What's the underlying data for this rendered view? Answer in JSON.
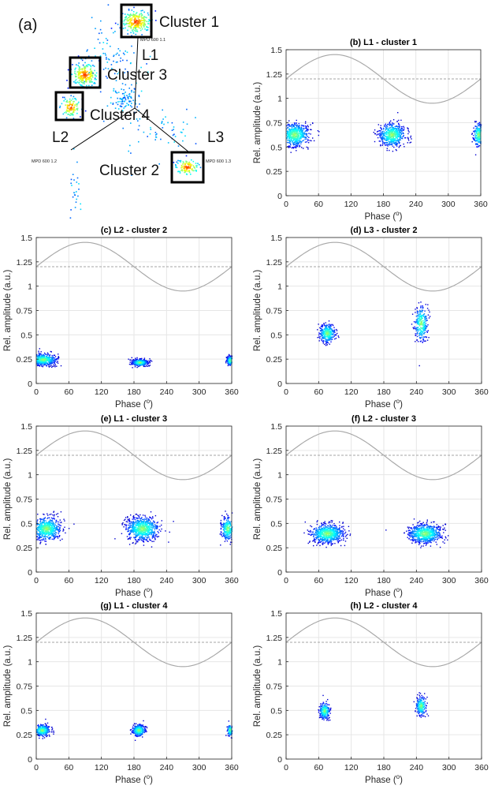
{
  "scatter_panel": {
    "label": "(a)",
    "clusters": [
      "Cluster 1",
      "Cluster 2",
      "Cluster 3",
      "Cluster 4"
    ],
    "lines": [
      "L1",
      "L2",
      "L3"
    ],
    "small_labels": [
      "MPD 600 1.1",
      "MPD 600 1.2",
      "MPD 600 1.3"
    ]
  },
  "chart_data": [
    {
      "type": "scatter",
      "title": "(b) L1 - cluster 1",
      "xlabel": "Phase (°)",
      "ylabel": "Rel. amplitude (a.u.)",
      "xlim": [
        0,
        360
      ],
      "ylim": [
        0,
        1.5
      ],
      "xticks": [
        "0",
        "60",
        "120",
        "180",
        "240",
        "300",
        "360"
      ],
      "yticks": [
        "0",
        "0.25",
        "0.5",
        "0.75",
        "1",
        "1.25",
        "1.5"
      ],
      "grid": true,
      "reference": {
        "sine_center": 1.2,
        "sine_amplitude": 0.25,
        "dashed_level": 1.2
      },
      "clusters": [
        {
          "x_center": 15,
          "x_spread": 22,
          "y_center": 0.63,
          "y_spread": 0.1
        },
        {
          "x_center": 195,
          "x_spread": 20,
          "y_center": 0.63,
          "y_spread": 0.1
        },
        {
          "x_center": 355,
          "x_spread": 8,
          "y_center": 0.63,
          "y_spread": 0.1
        }
      ]
    },
    {
      "type": "scatter",
      "title": "(c) L2 - cluster 2",
      "xlabel": "Phase (°)",
      "ylabel": "Rel. amplitude (a.u.)",
      "xlim": [
        0,
        360
      ],
      "ylim": [
        0,
        1.5
      ],
      "xticks": [
        "0",
        "60",
        "120",
        "180",
        "240",
        "300",
        "360"
      ],
      "yticks": [
        "0",
        "0.25",
        "0.5",
        "0.75",
        "1",
        "1.25",
        "1.5"
      ],
      "grid": true,
      "reference": {
        "sine_center": 1.2,
        "sine_amplitude": 0.25,
        "dashed_level": 1.2
      },
      "clusters": [
        {
          "x_center": 12,
          "x_spread": 20,
          "y_center": 0.25,
          "y_spread": 0.05
        },
        {
          "x_center": 190,
          "x_spread": 12,
          "y_center": 0.22,
          "y_spread": 0.03
        },
        {
          "x_center": 356,
          "x_spread": 5,
          "y_center": 0.24,
          "y_spread": 0.04
        }
      ]
    },
    {
      "type": "scatter",
      "title": "(d) L3 - cluster 2",
      "xlabel": "Phase (°)",
      "ylabel": "Rel. amplitude (a.u.)",
      "xlim": [
        0,
        360
      ],
      "ylim": [
        0,
        1.5
      ],
      "xticks": [
        "0",
        "60",
        "120",
        "180",
        "240",
        "300",
        "360"
      ],
      "yticks": [
        "0",
        "0.25",
        "0.5",
        "0.75",
        "1",
        "1.25",
        "1.5"
      ],
      "grid": true,
      "reference": {
        "sine_center": 1.2,
        "sine_amplitude": 0.25,
        "dashed_level": 1.2
      },
      "clusters": [
        {
          "x_center": 75,
          "x_spread": 12,
          "y_center": 0.52,
          "y_spread": 0.08
        },
        {
          "x_center": 248,
          "x_spread": 10,
          "y_center": 0.62,
          "y_spread": 0.15
        }
      ]
    },
    {
      "type": "scatter",
      "title": "(e) L1 - cluster 3",
      "xlabel": "Phase (°)",
      "ylabel": "Rel. amplitude (a.u.)",
      "xlim": [
        0,
        360
      ],
      "ylim": [
        0,
        1.5
      ],
      "xticks": [
        "0",
        "60",
        "120",
        "180",
        "240",
        "300",
        "360"
      ],
      "yticks": [
        "0",
        "0.25",
        "0.5",
        "0.75",
        "1",
        "1.25",
        "1.5"
      ],
      "grid": true,
      "reference": {
        "sine_center": 1.2,
        "sine_amplitude": 0.25,
        "dashed_level": 1.2
      },
      "clusters": [
        {
          "x_center": 18,
          "x_spread": 22,
          "y_center": 0.45,
          "y_spread": 0.1
        },
        {
          "x_center": 195,
          "x_spread": 25,
          "y_center": 0.45,
          "y_spread": 0.1
        },
        {
          "x_center": 352,
          "x_spread": 10,
          "y_center": 0.45,
          "y_spread": 0.1
        }
      ]
    },
    {
      "type": "scatter",
      "title": "(f) L2 - cluster 3",
      "xlabel": "Phase (°)",
      "ylabel": "Rel. amplitude (a.u.)",
      "xlim": [
        0,
        360
      ],
      "ylim": [
        0,
        1.5
      ],
      "xticks": [
        "0",
        "60",
        "120",
        "180",
        "240",
        "300",
        "360"
      ],
      "yticks": [
        "0",
        "0.25",
        "0.5",
        "0.75",
        "1",
        "1.25",
        "1.5"
      ],
      "grid": true,
      "reference": {
        "sine_center": 1.2,
        "sine_amplitude": 0.25,
        "dashed_level": 1.2
      },
      "clusters": [
        {
          "x_center": 75,
          "x_spread": 25,
          "y_center": 0.4,
          "y_spread": 0.08
        },
        {
          "x_center": 255,
          "x_spread": 25,
          "y_center": 0.4,
          "y_spread": 0.08
        }
      ]
    },
    {
      "type": "scatter",
      "title": "(g) L1 - cluster 4",
      "xlabel": "Phase (°)",
      "ylabel": "Rel. amplitude (a.u.)",
      "xlim": [
        0,
        360
      ],
      "ylim": [
        0,
        1.5
      ],
      "xticks": [
        "0",
        "60",
        "120",
        "180",
        "240",
        "300",
        "360"
      ],
      "yticks": [
        "0",
        "0.25",
        "0.5",
        "0.75",
        "1",
        "1.25",
        "1.5"
      ],
      "grid": true,
      "reference": {
        "sine_center": 1.2,
        "sine_amplitude": 0.25,
        "dashed_level": 1.2
      },
      "clusters": [
        {
          "x_center": 10,
          "x_spread": 12,
          "y_center": 0.3,
          "y_spread": 0.05
        },
        {
          "x_center": 188,
          "x_spread": 10,
          "y_center": 0.3,
          "y_spread": 0.05
        },
        {
          "x_center": 356,
          "x_spread": 4,
          "y_center": 0.3,
          "y_spread": 0.05
        }
      ]
    },
    {
      "type": "scatter",
      "title": "(h) L2 - cluster 4",
      "xlabel": "Phase (°)",
      "ylabel": "Rel. amplitude (a.u.)",
      "xlim": [
        0,
        360
      ],
      "ylim": [
        0,
        1.5
      ],
      "xticks": [
        "0",
        "60",
        "120",
        "180",
        "240",
        "300",
        "360"
      ],
      "yticks": [
        "0",
        "0.25",
        "0.5",
        "0.75",
        "1",
        "1.25",
        "1.5"
      ],
      "grid": true,
      "reference": {
        "sine_center": 1.2,
        "sine_amplitude": 0.25,
        "dashed_level": 1.2
      },
      "clusters": [
        {
          "x_center": 70,
          "x_spread": 8,
          "y_center": 0.5,
          "y_spread": 0.07
        },
        {
          "x_center": 248,
          "x_spread": 8,
          "y_center": 0.55,
          "y_spread": 0.08
        }
      ]
    }
  ]
}
